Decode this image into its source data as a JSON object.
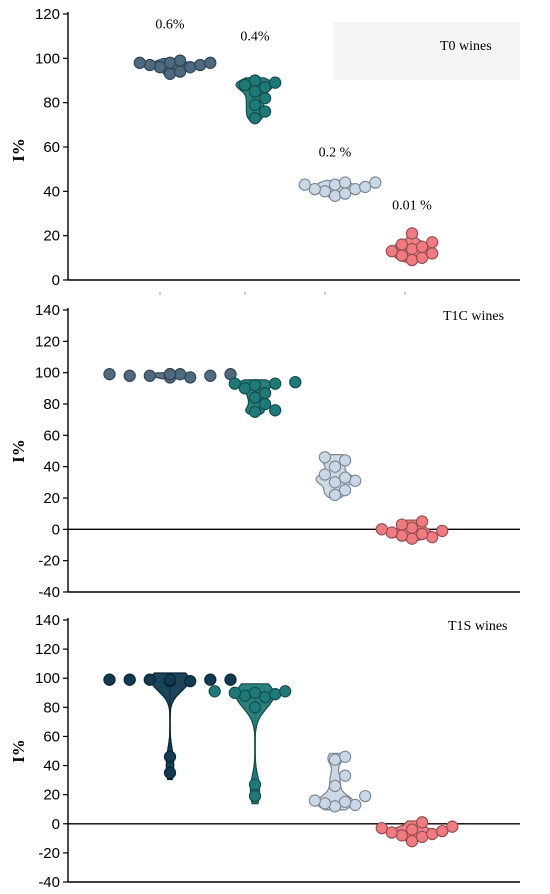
{
  "chart_data": [
    {
      "type": "violin",
      "title": "T0 wines",
      "ylabel": "I%",
      "ylim": [
        0,
        120
      ],
      "yticks": [
        0,
        20,
        40,
        60,
        80,
        100,
        120
      ],
      "zero_line": false,
      "series": [
        {
          "annotation": "0.6%",
          "color": "#4d6a80",
          "values": [
            93,
            94,
            96,
            96,
            97,
            97,
            98,
            98,
            98,
            99
          ]
        },
        {
          "annotation": "0.4%",
          "color": "#1e7a78",
          "values": [
            73,
            76,
            79,
            82,
            85,
            87,
            88,
            89,
            90
          ]
        },
        {
          "annotation": "0.2 %",
          "color": "#c9d8e6",
          "values": [
            38,
            39,
            40,
            41,
            41,
            42,
            43,
            43,
            44,
            44
          ]
        },
        {
          "annotation": "0.01 %",
          "color": "#ef7b80",
          "values": [
            9,
            10,
            11,
            12,
            13,
            14,
            15,
            16,
            17,
            21
          ]
        }
      ]
    },
    {
      "type": "violin",
      "title": "T1C wines",
      "ylabel": "I%",
      "ylim": [
        -40,
        140
      ],
      "yticks": [
        -40,
        -20,
        0,
        20,
        40,
        60,
        80,
        100,
        120,
        140
      ],
      "zero_line": true,
      "series": [
        {
          "annotation": "",
          "color": "#4d6a80",
          "values": [
            97,
            97,
            98,
            98,
            98,
            99,
            99,
            99,
            99,
            99
          ]
        },
        {
          "annotation": "",
          "color": "#1e7a78",
          "values": [
            75,
            76,
            80,
            84,
            87,
            90,
            92,
            93,
            93,
            94
          ]
        },
        {
          "annotation": "",
          "color": "#c9d8e6",
          "values": [
            22,
            25,
            30,
            31,
            33,
            35,
            40,
            44,
            46
          ]
        },
        {
          "annotation": "",
          "color": "#ef7b80",
          "values": [
            -6,
            -5,
            -4,
            -3,
            -2,
            -1,
            0,
            1,
            3,
            5
          ]
        }
      ]
    },
    {
      "type": "violin",
      "title": "T1S wines",
      "ylabel": "I%",
      "ylim": [
        -40,
        140
      ],
      "yticks": [
        -40,
        -20,
        0,
        20,
        40,
        60,
        80,
        100,
        120,
        140
      ],
      "zero_line": true,
      "series": [
        {
          "annotation": "",
          "color": "#0f3a52",
          "values": [
            35,
            46,
            98,
            98,
            99,
            99,
            99,
            99,
            99,
            99
          ]
        },
        {
          "annotation": "",
          "color": "#1e7a78",
          "values": [
            19,
            27,
            80,
            87,
            88,
            89,
            90,
            90,
            91,
            91
          ]
        },
        {
          "annotation": "",
          "color": "#c9d8e6",
          "values": [
            12,
            13,
            14,
            15,
            16,
            19,
            26,
            33,
            44,
            46
          ]
        },
        {
          "annotation": "",
          "color": "#ef7b80",
          "values": [
            -12,
            -9,
            -8,
            -7,
            -6,
            -5,
            -4,
            -3,
            -2,
            1
          ]
        }
      ]
    }
  ]
}
